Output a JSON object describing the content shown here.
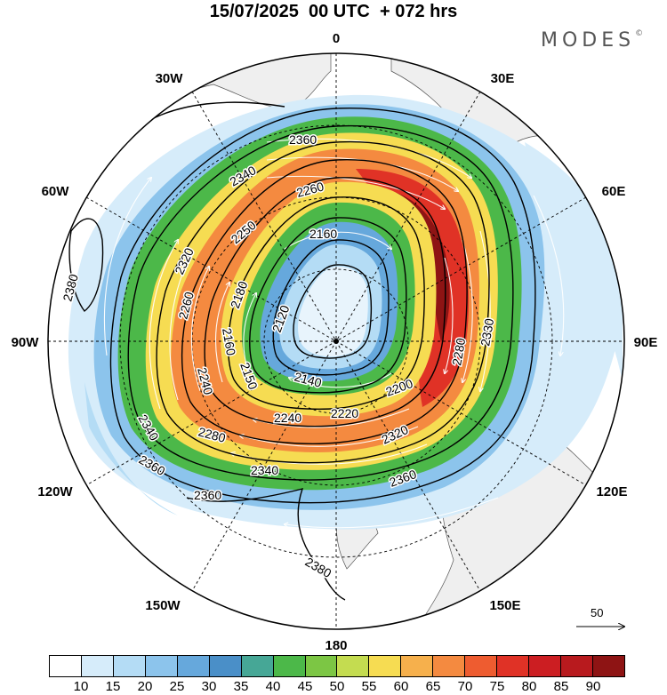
{
  "title": "15/07/2025  00 UTC  + 072 hrs",
  "brand": "MODES",
  "brand_mark": "©",
  "longitude_labels": [
    {
      "text": "0",
      "lon": 0
    },
    {
      "text": "30E",
      "lon": 30
    },
    {
      "text": "60E",
      "lon": 60
    },
    {
      "text": "90E",
      "lon": 90
    },
    {
      "text": "120E",
      "lon": 120
    },
    {
      "text": "150E",
      "lon": 150
    },
    {
      "text": "180",
      "lon": 180
    },
    {
      "text": "150W",
      "lon": -150
    },
    {
      "text": "120W",
      "lon": -120
    },
    {
      "text": "90W",
      "lon": -90
    },
    {
      "text": "60W",
      "lon": -60
    },
    {
      "text": "30W",
      "lon": -30
    }
  ],
  "contour_labels": [
    "2360",
    "2340",
    "2260",
    "2250",
    "2320",
    "2260",
    "2160",
    "2180",
    "2120",
    "2140",
    "2150",
    "2160",
    "2240",
    "2280",
    "2200",
    "2220",
    "2240",
    "2280",
    "2320",
    "2340",
    "2360",
    "2360",
    "2380",
    "2380",
    "2330",
    "2340",
    "2360"
  ],
  "reference_vector": {
    "label": "50"
  },
  "colorbar": {
    "colors": [
      "#ffffff",
      "#d6ecfa",
      "#b4dcf5",
      "#8cc4ec",
      "#66a8dc",
      "#4a8fc8",
      "#46a796",
      "#4cb849",
      "#7cc644",
      "#c4dc50",
      "#f6dc52",
      "#f6b04c",
      "#f48a40",
      "#ee5c30",
      "#e03226",
      "#cc1e22",
      "#b81a1e",
      "#8e1414"
    ],
    "tick_labels": [
      "10",
      "15",
      "20",
      "25",
      "30",
      "35",
      "40",
      "45",
      "50",
      "55",
      "60",
      "65",
      "70",
      "75",
      "80",
      "85",
      "90"
    ]
  }
}
